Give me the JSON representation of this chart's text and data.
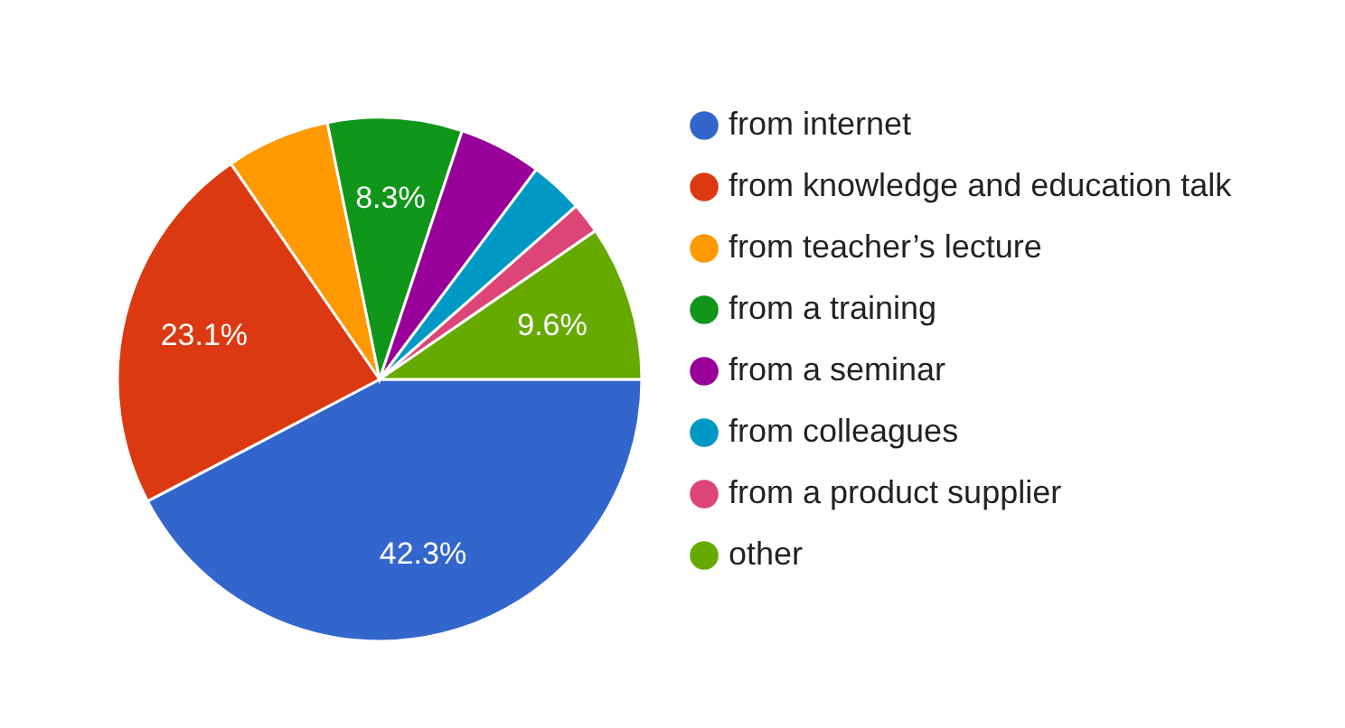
{
  "chart_data": {
    "type": "pie",
    "categories": [
      "from internet",
      "from knowledge and education talk",
      "from teacher’s lecture",
      "from a training",
      "from a seminar",
      "from colleagues",
      "from a product supplier",
      "other"
    ],
    "values": [
      42.3,
      23.1,
      6.4,
      8.3,
      5.1,
      3.3,
      1.9,
      9.6
    ],
    "colors": [
      "#3366cc",
      "#dc3912",
      "#ff9900",
      "#109618",
      "#990099",
      "#0099c6",
      "#dd4477",
      "#66aa00"
    ],
    "value_labels": [
      "42.3%",
      "23.1%",
      null,
      "8.3%",
      null,
      null,
      null,
      "9.6%"
    ],
    "legend": "right"
  }
}
